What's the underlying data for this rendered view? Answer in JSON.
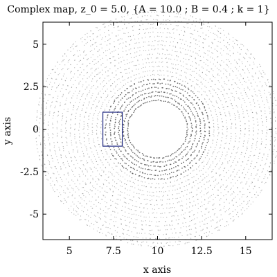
{
  "chart_data": {
    "type": "scatter",
    "title": "Complex map, z_0 = 5.0, {A = 10.0 ; B = 0.4 ; k = 1}",
    "xlabel": "x axis",
    "ylabel": "y axis",
    "xlim": [
      3.5,
      16.5
    ],
    "ylim": [
      -6.5,
      6.3
    ],
    "xticks": [
      5,
      7.5,
      10,
      12.5,
      15
    ],
    "xtick_labels": [
      "5",
      "7.5",
      "10",
      "12.5",
      "15"
    ],
    "yticks": [
      5,
      2.5,
      0,
      -2.5,
      -5
    ],
    "ytick_labels": [
      "5",
      "2.5",
      "0",
      "-2.5",
      "-5"
    ],
    "grid": false,
    "series": [
      {
        "marker": "dot",
        "color": "#555555",
        "center": [
          10.0,
          0.0
        ],
        "inner_radius": 1.7,
        "outer_radius": 6.9,
        "ring_radii": [
          1.7,
          1.95,
          2.2,
          2.45,
          2.7,
          2.95,
          3.2,
          3.45,
          3.7,
          3.95,
          4.2,
          4.45,
          4.7,
          4.95,
          5.2,
          5.45,
          5.7,
          5.95,
          6.2,
          6.45,
          6.7,
          6.9
        ]
      }
    ],
    "annotations": [
      {
        "type": "rectangle",
        "color": "#1a237e",
        "x": [
          6.9,
          8.0
        ],
        "y": [
          -1.0,
          1.0
        ]
      }
    ]
  }
}
